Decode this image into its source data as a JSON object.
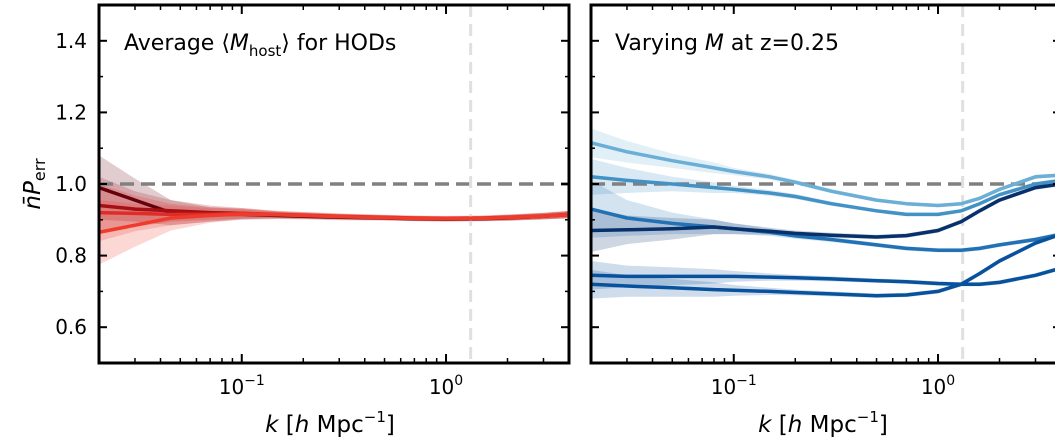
{
  "chart_data": [
    {
      "type": "line",
      "title": "Average ⟨M_host⟩ for HODs",
      "title_parts": {
        "prefix": "Average ⟨",
        "var": "M",
        "sub": "host",
        "suffix": "⟩ for HODs"
      },
      "xlabel": "k [h Mpc⁻¹]",
      "ylabel": "n̄P_err",
      "x_scale": "log",
      "xlim": [
        0.02,
        4.0
      ],
      "ylim": [
        0.5,
        1.5
      ],
      "y_ticks": [
        "0.6",
        "0.8",
        "1.0",
        "1.2",
        "1.4"
      ],
      "y_tick_values": [
        0.6,
        0.8,
        1.0,
        1.2,
        1.4
      ],
      "x_ticks": [
        {
          "value": 0.1,
          "base": "10",
          "exp": "−1"
        },
        {
          "value": 1.0,
          "base": "10",
          "exp": "0"
        }
      ],
      "reference_lines": {
        "horizontal_y": 1.0,
        "vertical_x": 1.32
      },
      "series": [
        {
          "color": "#67000d",
          "x": [
            0.02,
            0.03,
            0.045,
            0.07,
            0.1,
            0.15,
            0.2,
            0.3,
            0.5,
            0.7,
            1.0,
            1.5,
            2.0,
            3.0,
            4.0
          ],
          "y": [
            0.99,
            0.955,
            0.92,
            0.915,
            0.915,
            0.912,
            0.91,
            0.907,
            0.905,
            0.903,
            0.902,
            0.903,
            0.905,
            0.91,
            0.915
          ],
          "band": [
            0.09,
            0.06,
            0.035,
            0.02,
            0.015,
            0.01,
            0.009,
            0.008,
            0.007,
            0.007,
            0.007,
            0.007,
            0.008,
            0.009,
            0.01
          ]
        },
        {
          "color": "#a50f15",
          "x": [
            0.02,
            0.03,
            0.045,
            0.07,
            0.1,
            0.15,
            0.2,
            0.3,
            0.5,
            0.7,
            1.0,
            1.5,
            2.0,
            3.0,
            4.0
          ],
          "y": [
            0.94,
            0.93,
            0.925,
            0.92,
            0.918,
            0.914,
            0.912,
            0.909,
            0.906,
            0.904,
            0.903,
            0.904,
            0.906,
            0.91,
            0.914
          ],
          "band": [
            0.08,
            0.05,
            0.03,
            0.02,
            0.015,
            0.01,
            0.009,
            0.008,
            0.007,
            0.007,
            0.007,
            0.007,
            0.008,
            0.009,
            0.01
          ]
        },
        {
          "color": "#de2d26",
          "x": [
            0.02,
            0.03,
            0.045,
            0.07,
            0.1,
            0.15,
            0.2,
            0.3,
            0.5,
            0.7,
            1.0,
            1.5,
            2.0,
            3.0,
            4.0
          ],
          "y": [
            0.92,
            0.918,
            0.915,
            0.915,
            0.918,
            0.915,
            0.913,
            0.91,
            0.907,
            0.905,
            0.904,
            0.905,
            0.907,
            0.911,
            0.915
          ],
          "band": [
            0.08,
            0.05,
            0.03,
            0.02,
            0.015,
            0.01,
            0.009,
            0.008,
            0.007,
            0.007,
            0.007,
            0.007,
            0.008,
            0.009,
            0.01
          ]
        },
        {
          "color": "#ef3b2c",
          "x": [
            0.02,
            0.03,
            0.045,
            0.07,
            0.1,
            0.15,
            0.2,
            0.3,
            0.5,
            0.7,
            1.0,
            1.5,
            2.0,
            3.0,
            4.0
          ],
          "y": [
            0.865,
            0.885,
            0.905,
            0.912,
            0.916,
            0.914,
            0.912,
            0.909,
            0.906,
            0.904,
            0.903,
            0.904,
            0.906,
            0.91,
            0.914
          ],
          "band": [
            0.09,
            0.06,
            0.035,
            0.02,
            0.015,
            0.01,
            0.009,
            0.008,
            0.007,
            0.007,
            0.007,
            0.007,
            0.008,
            0.009,
            0.01
          ]
        }
      ]
    },
    {
      "type": "line",
      "title": "Varying M at z=0.25",
      "title_parts": {
        "prefix": "Varying ",
        "var": "M",
        "sub": "",
        "suffix": " at z=0.25"
      },
      "xlabel": "k [h Mpc⁻¹]",
      "ylabel": "",
      "x_scale": "log",
      "xlim": [
        0.02,
        4.0
      ],
      "ylim": [
        0.5,
        1.5
      ],
      "y_ticks": [],
      "y_tick_values": [
        0.6,
        0.8,
        1.0,
        1.2,
        1.4
      ],
      "x_ticks": [
        {
          "value": 0.1,
          "base": "10",
          "exp": "−1"
        },
        {
          "value": 1.0,
          "base": "10",
          "exp": "0"
        }
      ],
      "reference_lines": {
        "horizontal_y": 1.0,
        "vertical_x": 1.32
      },
      "series": [
        {
          "color": "#6baed6",
          "x": [
            0.02,
            0.03,
            0.05,
            0.08,
            0.1,
            0.15,
            0.2,
            0.3,
            0.5,
            0.7,
            1.0,
            1.3,
            1.6,
            2.0,
            3.0,
            4.0
          ],
          "y": [
            1.115,
            1.09,
            1.065,
            1.045,
            1.035,
            1.02,
            1.005,
            0.98,
            0.955,
            0.945,
            0.94,
            0.945,
            0.96,
            0.985,
            1.02,
            1.025
          ],
          "band": [
            0.04,
            0.03,
            0.02,
            0.015,
            0.01,
            0.008,
            0.007,
            0.006,
            0.005,
            0.005,
            0.005,
            0.005,
            0.005,
            0.005,
            0.006,
            0.006
          ]
        },
        {
          "color": "#4292c6",
          "x": [
            0.02,
            0.03,
            0.05,
            0.08,
            0.1,
            0.15,
            0.2,
            0.3,
            0.5,
            0.7,
            1.0,
            1.3,
            1.6,
            2.0,
            3.0,
            4.0
          ],
          "y": [
            1.02,
            1.01,
            1.0,
            0.99,
            0.985,
            0.975,
            0.965,
            0.945,
            0.925,
            0.915,
            0.915,
            0.925,
            0.945,
            0.97,
            1.0,
            1.01
          ],
          "band": [
            0.05,
            0.035,
            0.02,
            0.015,
            0.01,
            0.008,
            0.007,
            0.006,
            0.005,
            0.005,
            0.005,
            0.005,
            0.005,
            0.005,
            0.006,
            0.006
          ]
        },
        {
          "color": "#2171b5",
          "x": [
            0.02,
            0.03,
            0.05,
            0.08,
            0.1,
            0.15,
            0.2,
            0.3,
            0.5,
            0.7,
            1.0,
            1.3,
            1.6,
            2.0,
            3.0,
            4.0
          ],
          "y": [
            0.93,
            0.905,
            0.89,
            0.88,
            0.875,
            0.865,
            0.855,
            0.845,
            0.83,
            0.82,
            0.815,
            0.815,
            0.82,
            0.83,
            0.845,
            0.86
          ],
          "band": [
            0.08,
            0.05,
            0.03,
            0.02,
            0.015,
            0.01,
            0.008,
            0.007,
            0.006,
            0.006,
            0.006,
            0.006,
            0.006,
            0.006,
            0.006,
            0.006
          ]
        },
        {
          "color": "#08306b",
          "x": [
            0.02,
            0.03,
            0.05,
            0.08,
            0.1,
            0.15,
            0.2,
            0.3,
            0.5,
            0.7,
            1.0,
            1.3,
            1.6,
            2.0,
            3.0,
            4.0
          ],
          "y": [
            0.87,
            0.872,
            0.875,
            0.88,
            0.875,
            0.868,
            0.862,
            0.857,
            0.852,
            0.856,
            0.87,
            0.895,
            0.925,
            0.955,
            0.99,
            1.0
          ],
          "band": [
            0.06,
            0.04,
            0.03,
            0.02,
            0.015,
            0.01,
            0.008,
            0.007,
            0.006,
            0.006,
            0.006,
            0.006,
            0.006,
            0.006,
            0.006,
            0.006
          ]
        },
        {
          "color": "#08519c",
          "x": [
            0.02,
            0.03,
            0.05,
            0.08,
            0.1,
            0.15,
            0.2,
            0.3,
            0.5,
            0.7,
            1.0,
            1.3,
            1.6,
            2.0,
            3.0,
            4.0
          ],
          "y": [
            0.745,
            0.742,
            0.742,
            0.742,
            0.742,
            0.74,
            0.738,
            0.735,
            0.73,
            0.727,
            0.722,
            0.72,
            0.72,
            0.725,
            0.745,
            0.765
          ],
          "band": [
            0.04,
            0.03,
            0.025,
            0.02,
            0.015,
            0.01,
            0.008,
            0.007,
            0.006,
            0.006,
            0.006,
            0.006,
            0.006,
            0.006,
            0.006,
            0.006
          ]
        },
        {
          "color": "#08519c",
          "x": [
            0.02,
            0.03,
            0.05,
            0.08,
            0.1,
            0.15,
            0.2,
            0.3,
            0.5,
            0.7,
            1.0,
            1.3,
            1.6,
            2.0,
            3.0,
            4.0
          ],
          "y": [
            0.72,
            0.715,
            0.71,
            0.705,
            0.703,
            0.7,
            0.697,
            0.693,
            0.688,
            0.69,
            0.7,
            0.72,
            0.75,
            0.785,
            0.835,
            0.86
          ],
          "band": [
            0.04,
            0.03,
            0.025,
            0.02,
            0.015,
            0.01,
            0.008,
            0.007,
            0.006,
            0.006,
            0.006,
            0.006,
            0.006,
            0.006,
            0.006,
            0.006
          ]
        }
      ]
    }
  ]
}
